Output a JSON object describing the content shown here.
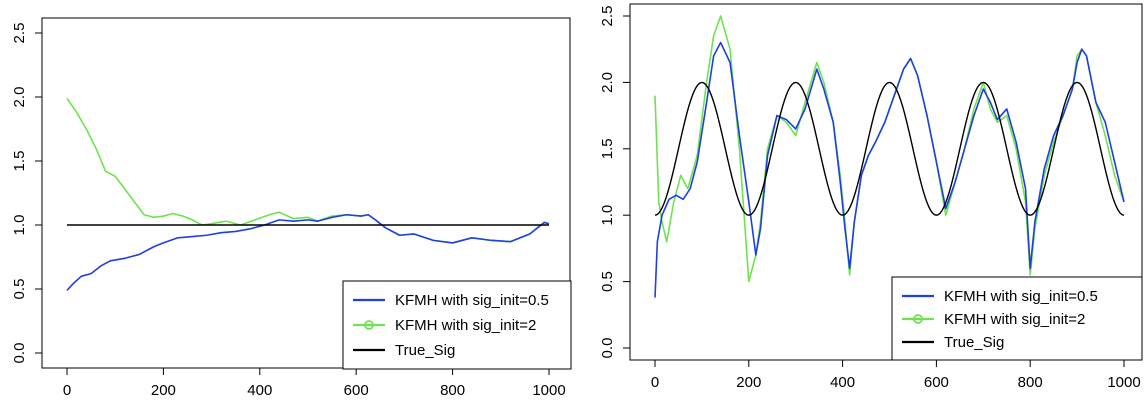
{
  "colors": {
    "series_1": "#1f3fe0",
    "series_2": "#6fe34f",
    "true_sig": "#000000"
  },
  "chart_data": [
    {
      "type": "line",
      "title": "",
      "xlabel": "",
      "ylabel": "",
      "xlim": [
        0,
        1000
      ],
      "ylim": [
        0,
        2.5
      ],
      "xticks": [
        "0",
        "200",
        "400",
        "600",
        "800",
        "1000"
      ],
      "yticks": [
        "0.0",
        "0.5",
        "1.0",
        "1.5",
        "2.0",
        "2.5"
      ],
      "grid": false,
      "legend": "bottom-right",
      "legend_entries": [
        "KFMH with sig_init=0.5",
        "KFMH with sig_init=2",
        "True_Sig"
      ],
      "series": [
        {
          "name": "KFMH with sig_init=0.5",
          "x": [
            0,
            15,
            30,
            50,
            70,
            90,
            120,
            150,
            180,
            200,
            230,
            260,
            290,
            320,
            350,
            380,
            410,
            440,
            470,
            500,
            520,
            550,
            580,
            610,
            625,
            640,
            660,
            690,
            720,
            760,
            800,
            840,
            880,
            920,
            960,
            990,
            1000
          ],
          "values": [
            0.49,
            0.55,
            0.6,
            0.62,
            0.68,
            0.72,
            0.74,
            0.77,
            0.83,
            0.86,
            0.9,
            0.91,
            0.92,
            0.94,
            0.95,
            0.97,
            1.0,
            1.04,
            1.03,
            1.04,
            1.03,
            1.06,
            1.08,
            1.07,
            1.08,
            1.04,
            0.98,
            0.92,
            0.93,
            0.88,
            0.86,
            0.9,
            0.88,
            0.87,
            0.93,
            1.02,
            1.01
          ]
        },
        {
          "name": "KFMH with sig_init=2",
          "x": [
            0,
            20,
            40,
            60,
            80,
            100,
            120,
            140,
            160,
            180,
            200,
            220,
            240,
            260,
            280,
            300,
            330,
            360,
            390,
            420,
            440,
            470,
            500,
            520,
            550,
            580,
            610,
            625,
            640,
            660,
            690,
            720,
            760,
            800,
            840,
            880,
            920,
            960,
            990,
            1000
          ],
          "values": [
            1.99,
            1.88,
            1.75,
            1.6,
            1.42,
            1.38,
            1.28,
            1.18,
            1.08,
            1.06,
            1.07,
            1.09,
            1.07,
            1.04,
            1.0,
            1.01,
            1.03,
            1.0,
            1.04,
            1.08,
            1.1,
            1.05,
            1.06,
            1.03,
            1.07,
            1.08,
            1.07,
            1.08,
            1.04,
            0.98,
            0.92,
            0.93,
            0.88,
            0.86,
            0.9,
            0.88,
            0.87,
            0.93,
            1.02,
            1.01
          ]
        },
        {
          "name": "True_Sig",
          "x": [
            0,
            1000
          ],
          "values": [
            1.0,
            1.0
          ]
        }
      ]
    },
    {
      "type": "line",
      "title": "",
      "xlabel": "",
      "ylabel": "",
      "xlim": [
        0,
        1000
      ],
      "ylim": [
        0,
        2.5
      ],
      "xticks": [
        "0",
        "200",
        "400",
        "600",
        "800",
        "1000"
      ],
      "yticks": [
        "0.0",
        "0.5",
        "1.0",
        "1.5",
        "2.0",
        "2.5"
      ],
      "grid": false,
      "legend": "bottom-right",
      "legend_entries": [
        "KFMH with sig_init=0.5",
        "KFMH with sig_init=2",
        "True_Sig"
      ],
      "series": [
        {
          "name": "KFMH with sig_init=0.5",
          "x": [
            0,
            5,
            15,
            30,
            45,
            60,
            75,
            90,
            110,
            125,
            140,
            160,
            180,
            200,
            215,
            225,
            240,
            260,
            280,
            300,
            320,
            345,
            360,
            380,
            395,
            405,
            415,
            425,
            440,
            455,
            470,
            490,
            510,
            530,
            545,
            560,
            580,
            600,
            620,
            640,
            660,
            680,
            700,
            715,
            730,
            750,
            770,
            790,
            800,
            810,
            830,
            850,
            870,
            890,
            900,
            910,
            920,
            940,
            960,
            980,
            1000
          ],
          "values": [
            0.38,
            0.8,
            1.0,
            1.12,
            1.15,
            1.12,
            1.2,
            1.4,
            1.85,
            2.2,
            2.3,
            2.15,
            1.6,
            1.1,
            0.7,
            0.9,
            1.45,
            1.75,
            1.72,
            1.65,
            1.8,
            2.1,
            1.95,
            1.7,
            1.25,
            0.9,
            0.6,
            0.95,
            1.3,
            1.45,
            1.55,
            1.7,
            1.9,
            2.1,
            2.18,
            2.05,
            1.75,
            1.4,
            1.05,
            1.25,
            1.5,
            1.75,
            1.95,
            1.85,
            1.72,
            1.8,
            1.55,
            1.2,
            0.6,
            0.95,
            1.35,
            1.6,
            1.75,
            1.95,
            2.15,
            2.25,
            2.2,
            1.85,
            1.7,
            1.4,
            1.1
          ]
        },
        {
          "name": "KFMH with sig_init=2",
          "x": [
            0,
            8,
            15,
            25,
            40,
            55,
            70,
            90,
            110,
            125,
            140,
            160,
            180,
            200,
            215,
            225,
            240,
            260,
            280,
            300,
            320,
            345,
            360,
            380,
            395,
            405,
            415,
            425,
            440,
            455,
            470,
            490,
            510,
            530,
            545,
            560,
            580,
            600,
            620,
            640,
            660,
            680,
            700,
            715,
            730,
            750,
            770,
            790,
            800,
            810,
            830,
            850,
            870,
            890,
            900,
            910,
            920,
            940,
            960,
            980,
            1000
          ],
          "values": [
            1.9,
            1.1,
            0.95,
            0.8,
            1.1,
            1.3,
            1.2,
            1.45,
            2.0,
            2.35,
            2.5,
            2.25,
            1.5,
            0.5,
            0.7,
            0.95,
            1.5,
            1.75,
            1.7,
            1.6,
            1.85,
            2.15,
            2.0,
            1.7,
            1.3,
            0.95,
            0.55,
            0.95,
            1.3,
            1.45,
            1.55,
            1.7,
            1.9,
            2.1,
            2.18,
            2.05,
            1.75,
            1.4,
            1.0,
            1.25,
            1.5,
            1.8,
            2.0,
            1.8,
            1.7,
            1.75,
            1.5,
            1.1,
            0.55,
            0.9,
            1.3,
            1.55,
            1.75,
            1.95,
            2.2,
            2.25,
            2.2,
            1.85,
            1.6,
            1.3,
            1.1
          ]
        },
        {
          "name": "True_Sig",
          "function": "1.5 - 0.5*cos(2*pi*x/200)",
          "x": [
            0,
            50,
            100,
            150,
            200,
            250,
            300,
            350,
            400,
            450,
            500,
            550,
            600,
            650,
            700,
            750,
            800,
            850,
            900,
            950,
            1000
          ],
          "values": [
            1.0,
            1.5,
            2.0,
            1.5,
            1.0,
            1.5,
            2.0,
            1.5,
            1.0,
            1.5,
            2.0,
            1.5,
            1.0,
            1.5,
            2.0,
            1.5,
            1.0,
            1.5,
            2.0,
            1.5,
            1.0
          ]
        }
      ]
    }
  ]
}
